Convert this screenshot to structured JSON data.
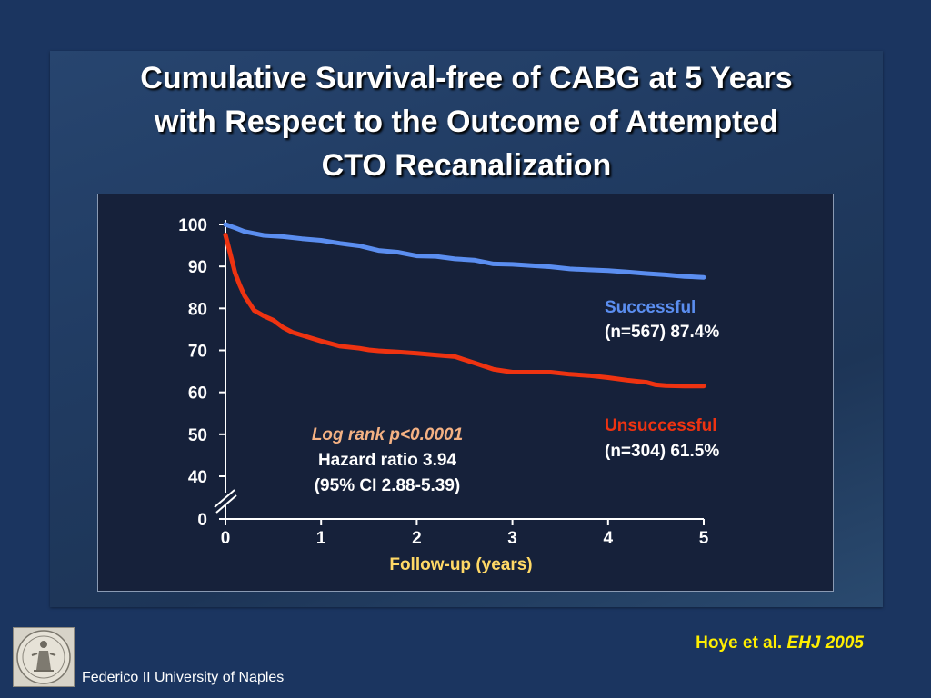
{
  "slide": {
    "title_lines": [
      "Cumulative Survival-free of CABG at 5 Years",
      "with Respect to the Outcome of Attempted",
      "CTO Recanalization"
    ],
    "citation_authors": "Hoye et al.",
    "citation_journal": "EHJ 2005",
    "footer_org": "Federico II University of Naples",
    "logo": "university-seal-icon"
  },
  "chart_data": {
    "type": "line",
    "title": "",
    "xlabel": "Follow-up (years)",
    "ylabel": "",
    "x_ticks": [
      "0",
      "1",
      "2",
      "3",
      "4",
      "5"
    ],
    "y_ticks": [
      "0",
      "40",
      "50",
      "60",
      "70",
      "80",
      "90",
      "100"
    ],
    "xlim": [
      0,
      5
    ],
    "ylim": [
      40,
      100
    ],
    "y_axis_break": true,
    "grid": false,
    "series": [
      {
        "name": "Successful",
        "n_label": "(n=567) 87.4%",
        "color": "#5b8ef0",
        "x": [
          0,
          0.1,
          0.2,
          0.4,
          0.6,
          0.8,
          1.0,
          1.2,
          1.4,
          1.6,
          1.8,
          2.0,
          2.2,
          2.4,
          2.6,
          2.8,
          3.0,
          3.2,
          3.4,
          3.6,
          3.8,
          4.0,
          4.2,
          4.4,
          4.6,
          4.8,
          5.0
        ],
        "y": [
          100,
          99.2,
          98.3,
          97.4,
          97.1,
          96.6,
          96.2,
          95.5,
          94.9,
          93.8,
          93.4,
          92.5,
          92.4,
          91.8,
          91.5,
          90.6,
          90.5,
          90.2,
          89.9,
          89.4,
          89.2,
          89.0,
          88.7,
          88.3,
          88.0,
          87.6,
          87.4
        ]
      },
      {
        "name": "Unsuccessful",
        "n_label": "(n=304) 61.5%",
        "color": "#ee3311",
        "x": [
          0,
          0.05,
          0.1,
          0.15,
          0.2,
          0.3,
          0.4,
          0.5,
          0.6,
          0.7,
          0.8,
          0.9,
          1.0,
          1.1,
          1.2,
          1.4,
          1.5,
          1.6,
          1.8,
          2.0,
          2.2,
          2.4,
          2.6,
          2.8,
          3.0,
          3.2,
          3.4,
          3.6,
          3.8,
          4.0,
          4.2,
          4.4,
          4.5,
          4.6,
          4.8,
          5.0
        ],
        "y": [
          97.5,
          93,
          88.5,
          85.5,
          83,
          79.5,
          78.2,
          77.2,
          75.5,
          74.3,
          73.6,
          72.9,
          72.2,
          71.6,
          71.0,
          70.5,
          70.1,
          69.9,
          69.6,
          69.3,
          68.9,
          68.5,
          67.0,
          65.5,
          64.8,
          64.8,
          64.8,
          64.3,
          64.0,
          63.5,
          62.9,
          62.4,
          61.8,
          61.6,
          61.5,
          61.5
        ]
      }
    ],
    "annotations": {
      "logrank": "Log rank p<0.0001",
      "hazard": "Hazard ratio 3.94",
      "ci": "(95% CI 2.88-5.39)"
    },
    "colors": {
      "axis": "#ffffff",
      "xlabel": "#ffd966",
      "logrank": "#f4b183"
    }
  }
}
